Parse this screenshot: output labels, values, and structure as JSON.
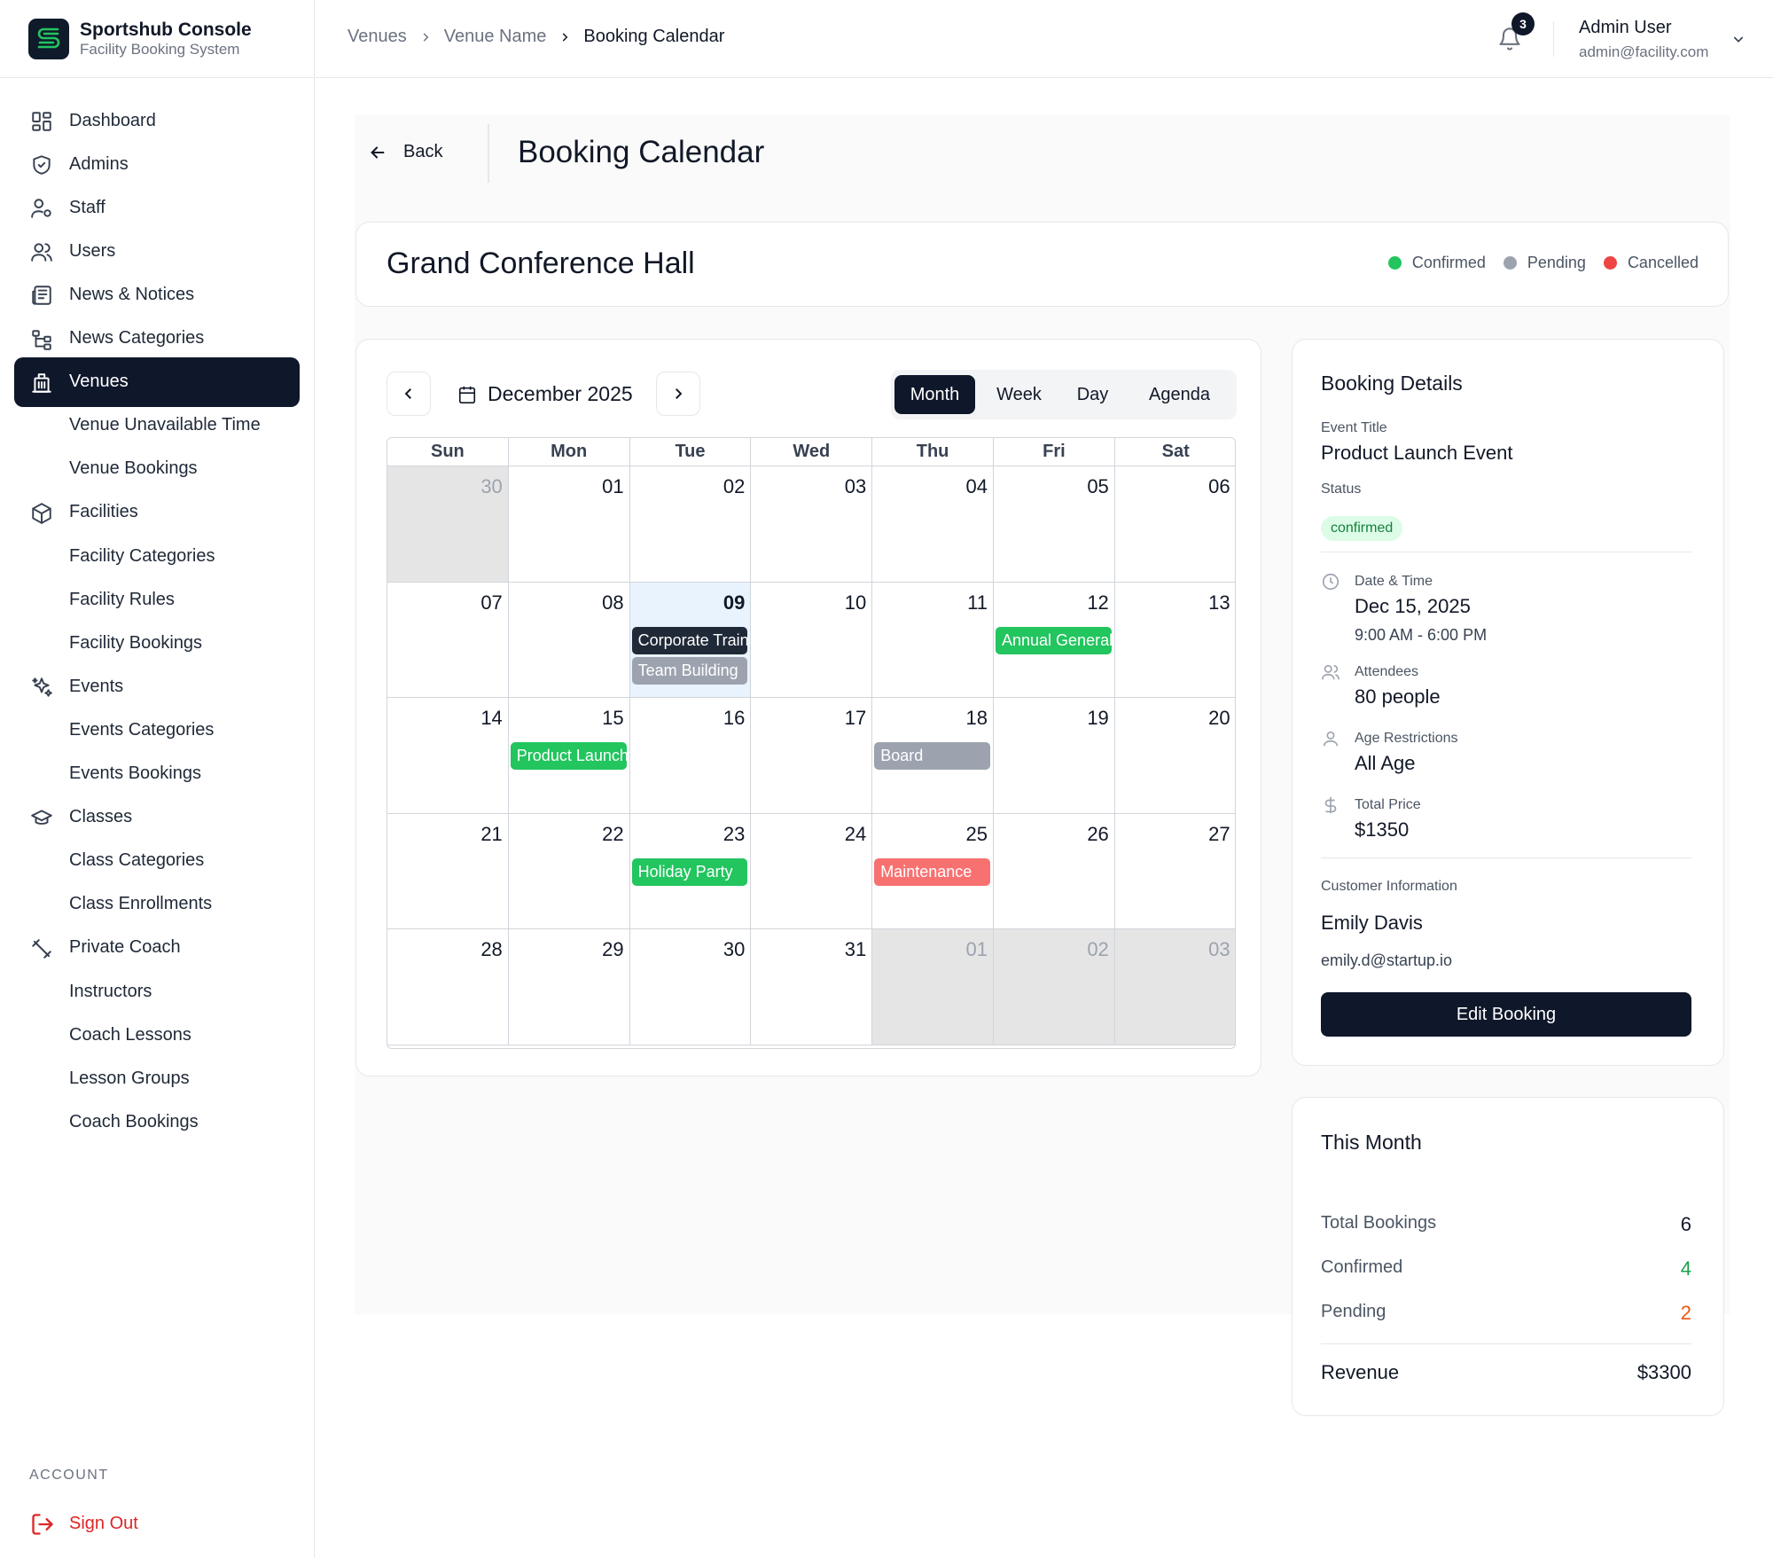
{
  "brand": {
    "title": "Sportshub Console",
    "subtitle": "Facility Booking System"
  },
  "sidebar": {
    "items": [
      {
        "label": "Dashboard",
        "icon": "dashboard-icon",
        "type": "main"
      },
      {
        "label": "Admins",
        "icon": "shield-icon",
        "type": "main"
      },
      {
        "label": "Staff",
        "icon": "user-gear-icon",
        "type": "main"
      },
      {
        "label": "Users",
        "icon": "users-icon",
        "type": "main"
      },
      {
        "label": "News & Notices",
        "icon": "newspaper-icon",
        "type": "main"
      },
      {
        "label": "News Categories",
        "icon": "tree-icon",
        "type": "main"
      },
      {
        "label": "Venues",
        "icon": "building-icon",
        "type": "main",
        "active": true
      },
      {
        "label": "Venue Unavailable Time",
        "type": "sub"
      },
      {
        "label": "Venue Bookings",
        "type": "sub"
      },
      {
        "label": "Facilities",
        "icon": "box-icon",
        "type": "main"
      },
      {
        "label": "Facility Categories",
        "type": "sub"
      },
      {
        "label": "Facility Rules",
        "type": "sub"
      },
      {
        "label": "Facility Bookings",
        "type": "sub"
      },
      {
        "label": "Events",
        "icon": "sparkles-icon",
        "type": "main"
      },
      {
        "label": "Events Categories",
        "type": "sub"
      },
      {
        "label": "Events Bookings",
        "type": "sub"
      },
      {
        "label": "Classes",
        "icon": "graduation-cap-icon",
        "type": "main"
      },
      {
        "label": "Class Categories",
        "type": "sub"
      },
      {
        "label": "Class Enrollments",
        "type": "sub"
      },
      {
        "label": "Private Coach",
        "icon": "dumbbell-icon",
        "type": "main"
      },
      {
        "label": "Instructors",
        "type": "sub"
      },
      {
        "label": "Coach Lessons",
        "type": "sub"
      },
      {
        "label": "Lesson Groups",
        "type": "sub"
      },
      {
        "label": "Coach Bookings",
        "type": "sub"
      }
    ],
    "account_label": "ACCOUNT",
    "signout_label": "Sign Out"
  },
  "breadcrumb": {
    "items": [
      "Venues",
      "Venue Name",
      "Booking Calendar"
    ]
  },
  "notifications": {
    "count": "3"
  },
  "user": {
    "name": "Admin User",
    "email": "admin@facility.com"
  },
  "page": {
    "back_label": "Back",
    "title": "Booking Calendar"
  },
  "venue": {
    "name": "Grand Conference Hall"
  },
  "legend": [
    {
      "label": "Confirmed",
      "color": "#22c55e"
    },
    {
      "label": "Pending",
      "color": "#9ca3af"
    },
    {
      "label": "Cancelled",
      "color": "#ef4444"
    }
  ],
  "calendar": {
    "month_label": "December 2025",
    "views": [
      "Month",
      "Week",
      "Day",
      "Agenda"
    ],
    "active_view": "Month",
    "weekdays": [
      "Sun",
      "Mon",
      "Tue",
      "Wed",
      "Thu",
      "Fri",
      "Sat"
    ],
    "days": [
      {
        "n": "30",
        "off": true
      },
      {
        "n": "01"
      },
      {
        "n": "02"
      },
      {
        "n": "03"
      },
      {
        "n": "04"
      },
      {
        "n": "05"
      },
      {
        "n": "06"
      },
      {
        "n": "07"
      },
      {
        "n": "08"
      },
      {
        "n": "09",
        "today": true
      },
      {
        "n": "10"
      },
      {
        "n": "11"
      },
      {
        "n": "12"
      },
      {
        "n": "13"
      },
      {
        "n": "14"
      },
      {
        "n": "15"
      },
      {
        "n": "16"
      },
      {
        "n": "17"
      },
      {
        "n": "18"
      },
      {
        "n": "19"
      },
      {
        "n": "20"
      },
      {
        "n": "21"
      },
      {
        "n": "22"
      },
      {
        "n": "23"
      },
      {
        "n": "24"
      },
      {
        "n": "25"
      },
      {
        "n": "26"
      },
      {
        "n": "27"
      },
      {
        "n": "28"
      },
      {
        "n": "29"
      },
      {
        "n": "30"
      },
      {
        "n": "31"
      },
      {
        "n": "01",
        "off": true
      },
      {
        "n": "02",
        "off": true
      },
      {
        "n": "03",
        "off": true
      }
    ],
    "events": [
      {
        "title": "Corporate Training",
        "day_index": 9,
        "slot": 0,
        "status": "dark"
      },
      {
        "title": "Team Building",
        "day_index": 9,
        "slot": 1,
        "status": "pending"
      },
      {
        "title": "Annual General Meeting",
        "day_index": 12,
        "slot": 0,
        "status": "confirmed"
      },
      {
        "title": "Product Launch Event",
        "day_index": 15,
        "slot": 0,
        "status": "confirmed"
      },
      {
        "title": "Board",
        "day_index": 18,
        "slot": 0,
        "status": "pending"
      },
      {
        "title": "Holiday Party",
        "day_index": 23,
        "slot": 0,
        "status": "confirmed"
      },
      {
        "title": "Maintenance",
        "day_index": 25,
        "slot": 0,
        "status": "cancelled"
      }
    ],
    "status_colors": {
      "dark": "#1f2937",
      "pending": "#9ca3af",
      "confirmed": "#22c55e",
      "cancelled": "#f87171"
    }
  },
  "details": {
    "title": "Booking Details",
    "event_title_label": "Event Title",
    "event_title": "Product Launch Event",
    "status_label": "Status",
    "status": "confirmed",
    "datetime_label": "Date & Time",
    "date": "Dec 15, 2025",
    "time": "9:00 AM - 6:00 PM",
    "attendees_label": "Attendees",
    "attendees": "80 people",
    "age_label": "Age Restrictions",
    "age": "All Age",
    "price_label": "Total Price",
    "price": "$1350",
    "customer_label": "Customer Information",
    "customer_name": "Emily Davis",
    "customer_email": "emily.d@startup.io",
    "edit_label": "Edit Booking"
  },
  "this_month": {
    "title": "This Month",
    "total_label": "Total Bookings",
    "total": "6",
    "confirmed_label": "Confirmed",
    "confirmed": "4",
    "confirmed_color": "#16a34a",
    "pending_label": "Pending",
    "pending": "2",
    "pending_color": "#ea580c",
    "revenue_label": "Revenue",
    "revenue": "$3300"
  }
}
